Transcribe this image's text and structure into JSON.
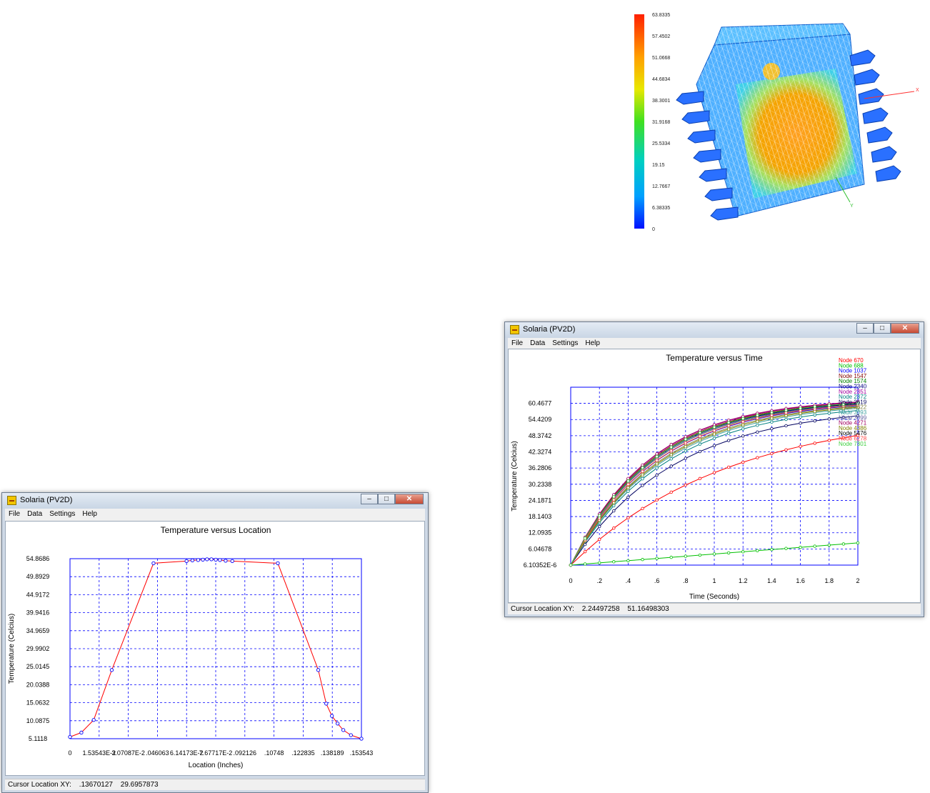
{
  "thermal_view": {
    "colorbar_labels": [
      "63.8335",
      "57.4502",
      "51.0668",
      "44.6834",
      "38.3001",
      "31.9168",
      "25.5334",
      "19.15",
      "12.7667",
      "6.38335",
      "0"
    ],
    "axis_labels": {
      "x": "X",
      "y": "Y"
    }
  },
  "location_window": {
    "title": "Solaria (PV2D)",
    "menu": [
      "File",
      "Data",
      "Settings",
      "Help"
    ],
    "status": {
      "label": "Cursor Location XY:",
      "x": ".13670127",
      "y": "29.6957873"
    }
  },
  "time_window": {
    "title": "Solaria (PV2D)",
    "menu": [
      "File",
      "Data",
      "Settings",
      "Help"
    ],
    "status": {
      "label": "Cursor Location XY:",
      "x": "2.24497258",
      "y": "51.16498303"
    }
  },
  "chart_data": [
    {
      "type": "line",
      "title": "Temperature versus Location",
      "xlabel": "Location (Inches)",
      "ylabel": "Temperature (Celcius)",
      "xlim": [
        0,
        0.153543
      ],
      "ylim": [
        5.1118,
        54.8686
      ],
      "x_ticks": [
        0,
        0.0153543,
        0.0307087,
        0.046063,
        0.0614173,
        0.0767717,
        0.092126,
        0.10748,
        0.122835,
        0.138189,
        0.153543
      ],
      "x_tick_labels": [
        "0",
        "1.53543E-2",
        "3.07087E-2",
        ".046063",
        "6.14173E-2",
        "7.67717E-2",
        ".092126",
        ".10748",
        ".122835",
        ".138189",
        ".153543"
      ],
      "y_tick_labels": [
        "54.8686",
        "49.8929",
        "44.9172",
        "39.9416",
        "34.9659",
        "29.9902",
        "25.0145",
        "20.0388",
        "15.0632",
        "10.0875",
        "5.1118"
      ],
      "grid": true,
      "series": [
        {
          "color": "#ff0000",
          "marker_color": "#0000ff",
          "x": [
            0,
            0.006,
            0.0125,
            0.022,
            0.044,
            0.0614,
            0.0645,
            0.0675,
            0.07,
            0.0722,
            0.0745,
            0.0768,
            0.079,
            0.082,
            0.0855,
            0.1095,
            0.1308,
            0.135,
            0.138,
            0.141,
            0.144,
            0.148,
            0.153543
          ],
          "y": [
            5.6,
            6.8,
            10.3,
            24.1,
            53.6,
            54.2,
            54.4,
            54.5,
            54.6,
            54.7,
            54.7,
            54.6,
            54.5,
            54.3,
            54.2,
            53.6,
            24.1,
            14.8,
            11.4,
            9.3,
            7.5,
            6.1,
            5.1118
          ]
        }
      ]
    },
    {
      "type": "line",
      "title": "Temperature versus Time",
      "xlabel": "Time (Seconds)",
      "ylabel": "Temperature (Celcius)",
      "xlim": [
        0,
        2
      ],
      "ylim": [
        6.10352e-06,
        66.5
      ],
      "x_ticks": [
        0,
        0.2,
        0.4,
        0.6,
        0.8,
        1,
        1.2,
        1.4,
        1.6,
        1.8,
        2
      ],
      "x_tick_labels": [
        "0",
        ".2",
        ".4",
        ".6",
        ".8",
        "1",
        "1.2",
        "1.4",
        "1.6",
        "1.8",
        "2"
      ],
      "y_ticks": [
        6.10352e-06,
        6.04678,
        12.0935,
        18.1403,
        24.1871,
        30.2338,
        36.2806,
        42.3274,
        48.3742,
        54.4209,
        60.4677
      ],
      "y_tick_labels": [
        "6.10352E-6",
        "6.04678",
        "12.0935",
        "18.1403",
        "24.1871",
        "30.2338",
        "36.2806",
        "42.3274",
        "48.3742",
        "54.4209",
        "60.4677"
      ],
      "grid": true,
      "legend_position": "top-right",
      "x": [
        0,
        0.1,
        0.2,
        0.3,
        0.4,
        0.5,
        0.6,
        0.7,
        0.8,
        0.9,
        1.0,
        1.1,
        1.2,
        1.3,
        1.4,
        1.5,
        1.6,
        1.7,
        1.8,
        1.9,
        2.0
      ],
      "series": [
        {
          "name": "Node  670",
          "color": "#ff0000",
          "final": 48.5,
          "tau": 1.1
        },
        {
          "name": "Node  688",
          "color": "#00c000",
          "final": 8.3,
          "tau": -1
        },
        {
          "name": "Node  1037",
          "color": "#0000ff",
          "final": 59.6,
          "tau": 0.6
        },
        {
          "name": "Node  1547",
          "color": "#800000",
          "final": 60.6,
          "tau": 0.56
        },
        {
          "name": "Node  1574",
          "color": "#008000",
          "final": 59.9,
          "tau": 0.58
        },
        {
          "name": "Node  2340",
          "color": "#000080",
          "final": 60.2,
          "tau": 0.57
        },
        {
          "name": "Node  2351",
          "color": "#a000a0",
          "final": 60.8,
          "tau": 0.55
        },
        {
          "name": "Node  2372",
          "color": "#008080",
          "final": 57.8,
          "tau": 0.66
        },
        {
          "name": "Node  2619",
          "color": "#000060",
          "final": 55.8,
          "tau": 0.72
        },
        {
          "name": "Node  3622",
          "color": "#808040",
          "final": 59.3,
          "tau": 0.62
        },
        {
          "name": "Node  3093",
          "color": "#40a0a0",
          "final": 58.6,
          "tau": 0.64
        },
        {
          "name": "Node  3099",
          "color": "#6060a0",
          "final": 60.0,
          "tau": 0.58
        },
        {
          "name": "Node  4271",
          "color": "#a00060",
          "final": 61.0,
          "tau": 0.55
        },
        {
          "name": "Node  4386",
          "color": "#808000",
          "final": 59.0,
          "tau": 0.63
        },
        {
          "name": "Node  5476",
          "color": "#000000",
          "final": 60.4,
          "tau": 0.57
        },
        {
          "name": "Node  6278",
          "color": "#ff4040",
          "final": 59.8,
          "tau": 0.6
        },
        {
          "name": "Node  7301",
          "color": "#40d040",
          "final": 60.5,
          "tau": 0.57
        }
      ]
    }
  ]
}
